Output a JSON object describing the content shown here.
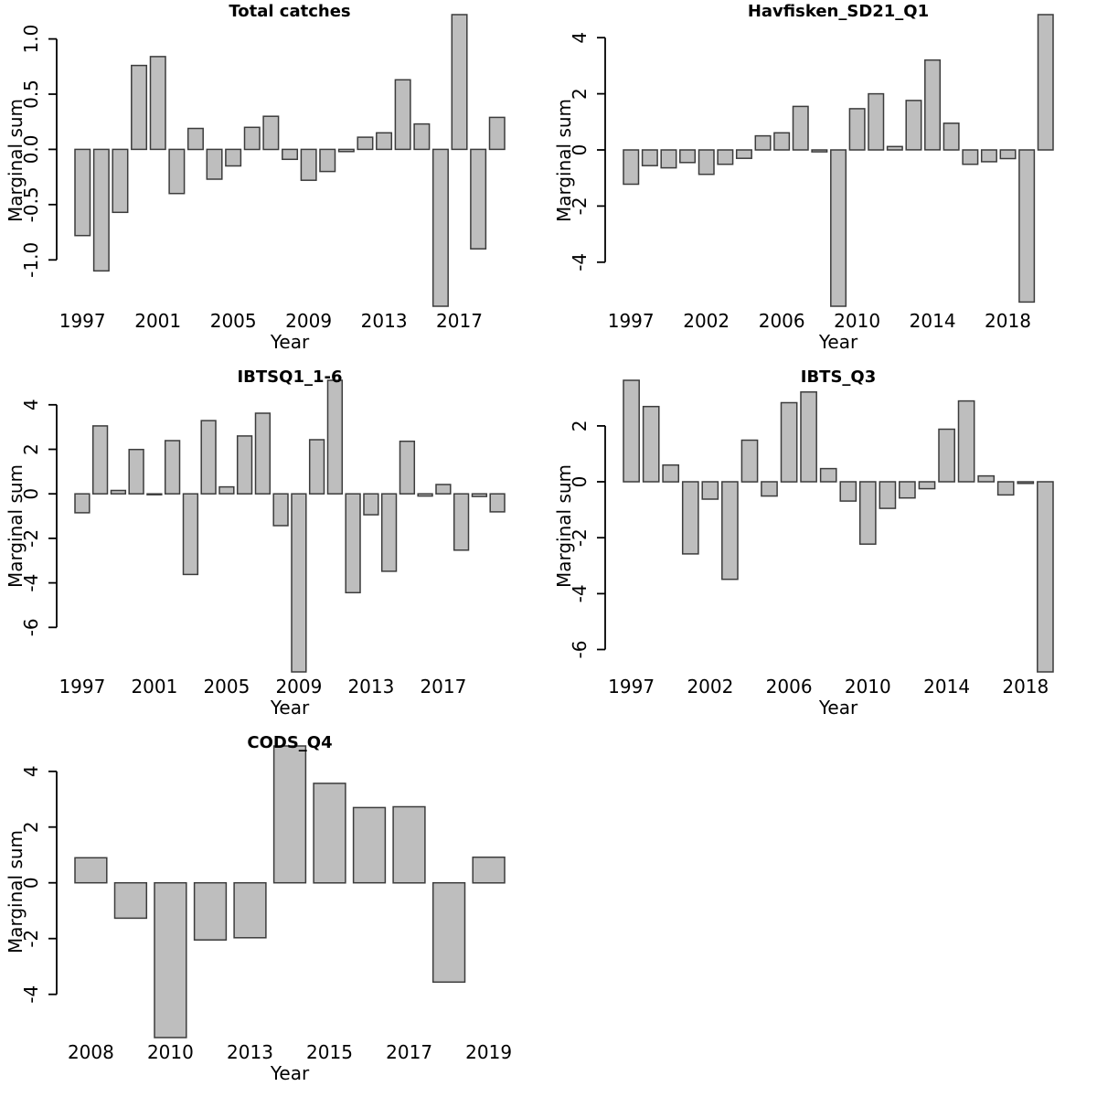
{
  "figure": {
    "background": "#ffffff",
    "bar_fill": "#bebebe",
    "bar_border": "#3c3c3c",
    "text_color": "#000000",
    "shared_xlabel": "Year",
    "shared_ylabel": "Marginal sum",
    "layout": "3x2 grid of bar chart panels, bottom-right panel empty"
  },
  "chart_data": [
    {
      "id": "total-catches",
      "type": "bar",
      "title": "Total catches",
      "xlabel": "Year",
      "ylabel": "Marginal sum",
      "grid": "off",
      "legend": "none",
      "categories": [
        "1997",
        "1998",
        "1999",
        "2000",
        "2001",
        "2002",
        "2003",
        "2004",
        "2005",
        "2006",
        "2007",
        "2008",
        "2009",
        "2010",
        "2011",
        "2012",
        "2013",
        "2014",
        "2015",
        "2016",
        "2017",
        "2018",
        "2019"
      ],
      "values": [
        -0.78,
        -1.1,
        -0.57,
        0.76,
        0.84,
        -0.4,
        0.19,
        -0.27,
        -0.15,
        0.2,
        0.3,
        -0.09,
        -0.28,
        -0.2,
        -0.02,
        0.11,
        0.15,
        0.63,
        0.23,
        -1.42,
        1.22,
        -0.9,
        0.29
      ],
      "ylim": [
        -1.42,
        1.22
      ],
      "ytick_values": [
        1.0,
        0.5,
        0.0,
        -0.5,
        -1.0
      ],
      "ytick_labels": [
        "1.0",
        "0.5",
        "0.0",
        "-0.5",
        "-1.0"
      ],
      "xtick_indices": [
        0,
        4,
        8,
        12,
        16,
        20
      ],
      "xtick_labels": [
        "1997",
        "2001",
        "2005",
        "2009",
        "2013",
        "2017"
      ]
    },
    {
      "id": "havfisken-sd21-q1",
      "type": "bar",
      "title": "Havfisken_SD21_Q1",
      "xlabel": "Year",
      "ylabel": "Marginal sum",
      "grid": "off",
      "legend": "none",
      "categories": [
        "1997",
        "1999",
        "2000",
        "2001",
        "2002",
        "2003",
        "2004",
        "2005",
        "2006",
        "2007",
        "2008",
        "2009",
        "2010",
        "2011",
        "2012",
        "2013",
        "2014",
        "2015",
        "2016",
        "2017",
        "2018",
        "2019",
        "2020"
      ],
      "values": [
        -1.22,
        -0.56,
        -0.64,
        -0.45,
        -0.87,
        -0.51,
        -0.3,
        0.5,
        0.61,
        1.55,
        -0.07,
        -5.57,
        1.47,
        2.0,
        0.12,
        1.76,
        3.2,
        0.95,
        -0.51,
        -0.42,
        -0.31,
        -5.42,
        4.82
      ],
      "ylim": [
        -5.57,
        4.82
      ],
      "ytick_values": [
        4,
        2,
        0,
        -2,
        -4
      ],
      "ytick_labels": [
        "4",
        "2",
        "0",
        "-2",
        "-4"
      ],
      "xtick_indices": [
        0,
        4,
        8,
        12,
        16,
        20
      ],
      "xtick_labels": [
        "1997",
        "2002",
        "2006",
        "2010",
        "2014",
        "2018"
      ]
    },
    {
      "id": "ibtsq1-1-6",
      "type": "bar",
      "title": "IBTSQ1_1-6",
      "xlabel": "Year",
      "ylabel": "Marginal sum",
      "grid": "off",
      "legend": "none",
      "categories": [
        "1997",
        "1998",
        "1999",
        "2000",
        "2001",
        "2002",
        "2003",
        "2004",
        "2005",
        "2006",
        "2007",
        "2008",
        "2009",
        "2010",
        "2011",
        "2012",
        "2013",
        "2014",
        "2015",
        "2016",
        "2017",
        "2018",
        "2019",
        "2020"
      ],
      "values": [
        -0.85,
        3.05,
        0.15,
        1.99,
        -0.04,
        2.39,
        -3.62,
        3.29,
        0.31,
        2.6,
        3.62,
        -1.43,
        -8.0,
        2.43,
        5.1,
        -4.44,
        -0.94,
        -3.48,
        2.36,
        -0.1,
        0.42,
        -2.53,
        -0.12,
        -0.81
      ],
      "ylim": [
        -8.0,
        5.1
      ],
      "ytick_values": [
        4,
        2,
        0,
        -2,
        -4,
        -6
      ],
      "ytick_labels": [
        "4",
        "2",
        "0",
        "-2",
        "-4",
        "-6"
      ],
      "xtick_indices": [
        0,
        4,
        8,
        12,
        16,
        20
      ],
      "xtick_labels": [
        "1997",
        "2001",
        "2005",
        "2009",
        "2013",
        "2017"
      ]
    },
    {
      "id": "ibts-q3",
      "type": "bar",
      "title": "IBTS_Q3",
      "xlabel": "Year",
      "ylabel": "Marginal sum",
      "grid": "off",
      "legend": "none",
      "categories": [
        "1997",
        "1999",
        "2000",
        "2001",
        "2002",
        "2003",
        "2004",
        "2005",
        "2006",
        "2007",
        "2008",
        "2009",
        "2010",
        "2011",
        "2012",
        "2013",
        "2014",
        "2015",
        "2016",
        "2017",
        "2018",
        "2019"
      ],
      "values": [
        3.63,
        2.69,
        0.6,
        -2.58,
        -0.62,
        -3.49,
        1.49,
        -0.51,
        2.83,
        3.21,
        0.47,
        -0.69,
        -2.23,
        -0.95,
        -0.58,
        -0.25,
        1.88,
        2.89,
        0.21,
        -0.47,
        -0.06,
        -6.8
      ],
      "ylim": [
        -6.8,
        3.63
      ],
      "ytick_values": [
        2,
        0,
        -2,
        -4,
        -6
      ],
      "ytick_labels": [
        "2",
        "0",
        "-2",
        "-4",
        "-6"
      ],
      "xtick_indices": [
        0,
        4,
        8,
        12,
        16,
        20
      ],
      "xtick_labels": [
        "1997",
        "2002",
        "2006",
        "2010",
        "2014",
        "2018"
      ]
    },
    {
      "id": "cods-q4",
      "type": "bar",
      "title": "CODS_Q4",
      "xlabel": "Year",
      "ylabel": "Marginal sum",
      "grid": "off",
      "legend": "none",
      "categories": [
        "2008",
        "2009",
        "2010",
        "2012",
        "2013",
        "2014",
        "2015",
        "2016",
        "2017",
        "2018",
        "2019"
      ],
      "values": [
        0.9,
        -1.27,
        -5.55,
        -2.05,
        -1.97,
        4.91,
        3.57,
        2.7,
        2.73,
        -3.56,
        0.92
      ],
      "ylim": [
        -5.55,
        4.91
      ],
      "ytick_values": [
        4,
        2,
        0,
        -2,
        -4
      ],
      "ytick_labels": [
        "4",
        "2",
        "0",
        "-2",
        "-4"
      ],
      "xtick_indices": [
        0,
        2,
        4,
        6,
        8,
        10
      ],
      "xtick_labels": [
        "2008",
        "2010",
        "2013",
        "2015",
        "2017",
        "2019"
      ]
    }
  ]
}
